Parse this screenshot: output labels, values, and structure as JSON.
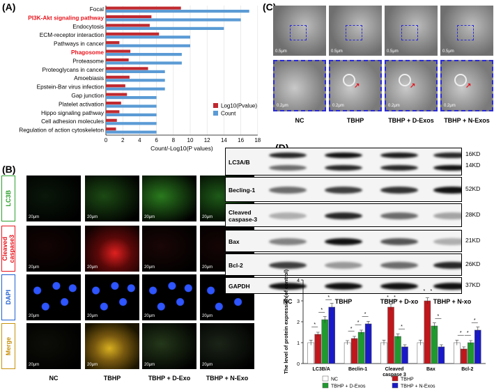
{
  "panel_a": {
    "label": "(A)",
    "xlabel": "Count/-Log10(P values)",
    "legend": [
      "Log10(Pvalue)",
      "Count"
    ],
    "colors": {
      "log10": "#c0292f",
      "count": "#5b9bd5",
      "highlight": "#e8141c"
    },
    "xticks": [
      "0",
      "2",
      "4",
      "6",
      "8",
      "10",
      "12",
      "14",
      "16",
      "18"
    ],
    "terms": [
      {
        "name": "Focal",
        "count": 17,
        "log10": 8.9,
        "highlight": false
      },
      {
        "name": "PI3K-Akt signaling pathway",
        "count": 16,
        "log10": 5.4,
        "highlight": true
      },
      {
        "name": "Endocytosis",
        "count": 14,
        "log10": 5.2,
        "highlight": false
      },
      {
        "name": "ECM-receptor interaction",
        "count": 10,
        "log10": 6.3,
        "highlight": false
      },
      {
        "name": "Pathways in cancer",
        "count": 10,
        "log10": 1.6,
        "highlight": false
      },
      {
        "name": "Phagosome",
        "count": 9,
        "log10": 2.9,
        "highlight": true
      },
      {
        "name": "Proteasome",
        "count": 9,
        "log10": 2.7,
        "highlight": false
      },
      {
        "name": "Proteoglycans in cancer",
        "count": 7,
        "log10": 5.0,
        "highlight": false
      },
      {
        "name": "Amoebiasis",
        "count": 7,
        "log10": 2.8,
        "highlight": false
      },
      {
        "name": "Epstein-Bar virus infection",
        "count": 7,
        "log10": 2.3,
        "highlight": false
      },
      {
        "name": "Gap junction",
        "count": 6,
        "log10": 2.5,
        "highlight": false
      },
      {
        "name": "Platelet activation",
        "count": 6,
        "log10": 1.8,
        "highlight": false
      },
      {
        "name": "Hippo signaling pathway",
        "count": 6,
        "log10": 1.6,
        "highlight": false
      },
      {
        "name": "Cell adhesion molecules",
        "count": 6,
        "log10": 1.3,
        "highlight": false
      },
      {
        "name": "Regulation of action cytoskeleton",
        "count": 6,
        "log10": 1.2,
        "highlight": false
      }
    ]
  },
  "panel_b": {
    "label": "(B)",
    "channels": [
      {
        "name": "LC3B",
        "color": "#2ca02c"
      },
      {
        "name": "Cleaved\ncaspase3",
        "color": "#e8141c"
      },
      {
        "name": "DAPI",
        "color": "#1f5fd1"
      },
      {
        "name": "Merge",
        "color": "#c8920a"
      }
    ],
    "conditions": [
      "NC",
      "TBHP",
      "TBHP + D-Exo",
      "TBHP + N-Exo"
    ],
    "scale": "20μm"
  },
  "panel_c": {
    "label": "(C)",
    "conditions": [
      "NC",
      "TBHP",
      "TBHP + D-Exos",
      "TBHP + N-Exos"
    ],
    "scale_top": "0.5μm",
    "scale_bottom": "0.2μm"
  },
  "panel_d": {
    "label": "(D)",
    "blots": [
      {
        "name": "LC3A/B",
        "kd": [
          "16KD",
          "14KD"
        ]
      },
      {
        "name": "Becling-1",
        "kd": [
          "52KD"
        ]
      },
      {
        "name": "Cleaved\ncaspase-3",
        "kd": [
          "28KD"
        ]
      },
      {
        "name": "Bax",
        "kd": [
          "21KD"
        ]
      },
      {
        "name": "Bcl-2",
        "kd": [
          "26KD"
        ]
      },
      {
        "name": "GAPDH",
        "kd": [
          "37KD"
        ]
      }
    ],
    "lanes": [
      "NC",
      "TBHP",
      "TBHP + D-xo",
      "TBHP + N-xo"
    ]
  },
  "chart_data": {
    "type": "bar",
    "title": "",
    "ylabel": "The level of protein expression(of control)",
    "ylim": [
      0,
      4
    ],
    "yticks": [
      "0",
      "1",
      "2",
      "3",
      "4"
    ],
    "categories": [
      "LC3B/A",
      "Beclin-1",
      "Cleaved caspase 3",
      "Bax",
      "Bcl-2"
    ],
    "series": [
      {
        "name": "NC",
        "color": "#ffffff",
        "values": [
          1.0,
          1.0,
          1.0,
          1.0,
          1.0
        ],
        "errors": [
          0.12,
          0.1,
          0.12,
          0.12,
          0.12
        ]
      },
      {
        "name": "TBHP",
        "color": "#c0171c",
        "values": [
          1.4,
          1.2,
          2.7,
          3.0,
          0.7
        ],
        "errors": [
          0.1,
          0.1,
          0.15,
          0.15,
          0.1
        ]
      },
      {
        "name": "TBHP + D-Exos",
        "color": "#1f9a2e",
        "values": [
          2.1,
          1.5,
          1.3,
          1.8,
          1.0
        ],
        "errors": [
          0.15,
          0.1,
          0.12,
          0.15,
          0.1
        ]
      },
      {
        "name": "TBHP + N-Exos",
        "color": "#1919c8",
        "values": [
          2.7,
          1.9,
          0.8,
          0.8,
          1.6
        ],
        "errors": [
          0.18,
          0.12,
          0.1,
          0.1,
          0.15
        ]
      }
    ],
    "significance": "*"
  }
}
